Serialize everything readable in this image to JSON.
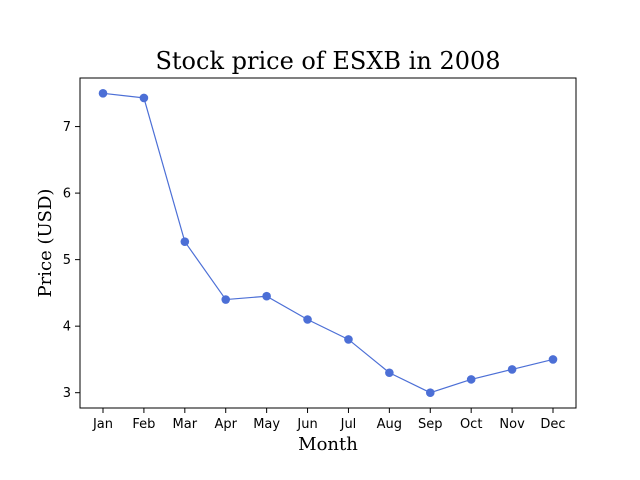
{
  "chart_data": {
    "type": "line",
    "title": "Stock price of ESXB in 2008",
    "xlabel": "Month",
    "ylabel": "Price (USD)",
    "categories": [
      "Jan",
      "Feb",
      "Mar",
      "Apr",
      "May",
      "Jun",
      "Jul",
      "Aug",
      "Sep",
      "Oct",
      "Nov",
      "Dec"
    ],
    "series": [
      {
        "values": [
          7.5,
          7.43,
          5.27,
          4.4,
          4.45,
          4.1,
          3.8,
          3.3,
          3.0,
          3.2,
          3.35,
          3.5
        ]
      }
    ],
    "yticks": [
      3,
      4,
      5,
      6,
      7
    ],
    "ylim": [
      2.77,
      7.73
    ],
    "grid": false,
    "legend": "none",
    "color": "#4c6fd6"
  }
}
